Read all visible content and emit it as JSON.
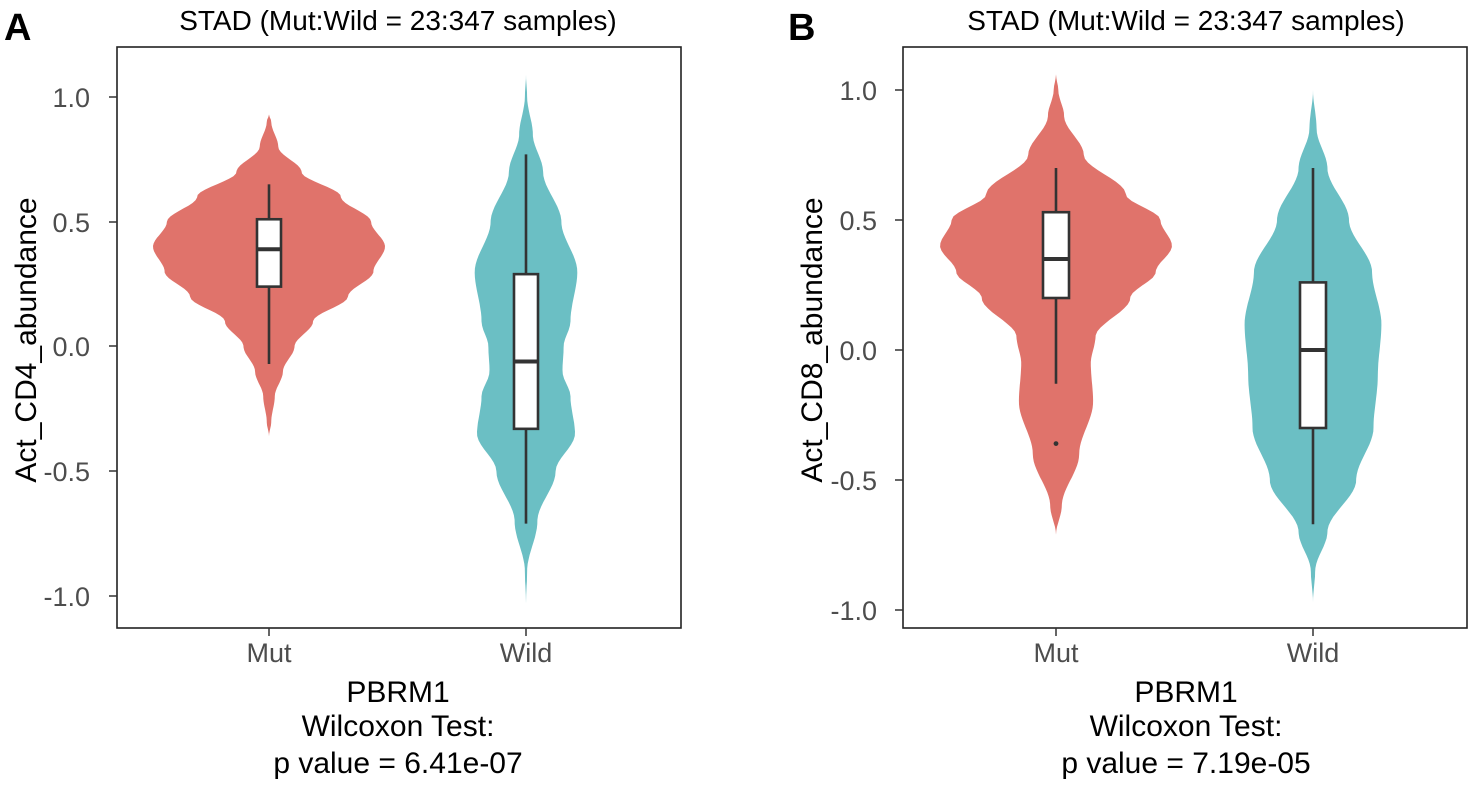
{
  "panels": [
    {
      "letter": "A",
      "title": "STAD (Mut:Wild = 23:347 samples)",
      "ylabel": "Act_CD4_abundance",
      "gene": "PBRM1",
      "test": "Wilcoxon Test:",
      "pvalue": "p value = 6.41e-07",
      "yticks": [
        "1.0",
        "0.5",
        "0.0",
        "-0.5",
        "-1.0"
      ],
      "xticks": [
        "Mut",
        "Wild"
      ]
    },
    {
      "letter": "B",
      "title": "STAD (Mut:Wild = 23:347 samples)",
      "ylabel": "Act_CD8_abundance",
      "gene": "PBRM1",
      "test": "Wilcoxon Test:",
      "pvalue": "p value = 7.19e-05",
      "yticks": [
        "1.0",
        "0.5",
        "0.0",
        "-0.5",
        "-1.0"
      ],
      "xticks": [
        "Mut",
        "Wild"
      ]
    }
  ],
  "colors": {
    "mut": "#e0736b",
    "wild": "#6bbfc4",
    "box_line": "#333333"
  },
  "chart_data": [
    {
      "type": "violin",
      "title": "STAD (Mut:Wild = 23:347 samples)",
      "xlabel": "PBRM1",
      "ylabel": "Act_CD4_abundance",
      "ylim": [
        -1.13,
        1.22
      ],
      "yticks": [
        1.0,
        0.5,
        0.0,
        -0.5,
        -1.0
      ],
      "categories": [
        "Mut",
        "Wild"
      ],
      "groups": [
        {
          "name": "Mut",
          "color": "#e0736b",
          "min": -0.36,
          "max": 0.93,
          "profile": [
            [
              -0.36,
              0.0
            ],
            [
              -0.3,
              0.02
            ],
            [
              -0.2,
              0.05
            ],
            [
              -0.1,
              0.12
            ],
            [
              0.0,
              0.22
            ],
            [
              0.1,
              0.38
            ],
            [
              0.2,
              0.68
            ],
            [
              0.3,
              0.9
            ],
            [
              0.4,
              1.0
            ],
            [
              0.5,
              0.88
            ],
            [
              0.6,
              0.62
            ],
            [
              0.7,
              0.28
            ],
            [
              0.8,
              0.08
            ],
            [
              0.9,
              0.02
            ],
            [
              0.93,
              0.0
            ]
          ],
          "box": {
            "whisker_low": -0.07,
            "q1": 0.24,
            "median": 0.39,
            "q3": 0.51,
            "whisker_high": 0.65
          },
          "outliers": []
        },
        {
          "name": "Wild",
          "color": "#6bbfc4",
          "min": -1.03,
          "max": 1.09,
          "profile": [
            [
              -1.03,
              0.0
            ],
            [
              -0.9,
              0.02
            ],
            [
              -0.7,
              0.2
            ],
            [
              -0.5,
              0.52
            ],
            [
              -0.35,
              0.86
            ],
            [
              -0.2,
              0.78
            ],
            [
              -0.1,
              0.64
            ],
            [
              0.0,
              0.66
            ],
            [
              0.1,
              0.78
            ],
            [
              0.3,
              0.9
            ],
            [
              0.5,
              0.62
            ],
            [
              0.7,
              0.3
            ],
            [
              0.85,
              0.12
            ],
            [
              1.0,
              0.02
            ],
            [
              1.09,
              0.0
            ]
          ],
          "box": {
            "whisker_low": -0.71,
            "q1": -0.33,
            "median": -0.06,
            "q3": 0.29,
            "whisker_high": 0.77
          },
          "outliers": []
        }
      ],
      "annotation": [
        "PBRM1",
        "Wilcoxon Test:",
        "p value = 6.41e-07"
      ]
    },
    {
      "type": "violin",
      "title": "STAD (Mut:Wild = 23:347 samples)",
      "xlabel": "PBRM1",
      "ylabel": "Act_CD8_abundance",
      "ylim": [
        -1.07,
        1.17
      ],
      "yticks": [
        1.0,
        0.5,
        0.0,
        -0.5,
        -1.0
      ],
      "categories": [
        "Mut",
        "Wild"
      ],
      "groups": [
        {
          "name": "Mut",
          "color": "#e0736b",
          "min": -0.71,
          "max": 1.06,
          "profile": [
            [
              -0.71,
              0.0
            ],
            [
              -0.6,
              0.05
            ],
            [
              -0.4,
              0.2
            ],
            [
              -0.2,
              0.32
            ],
            [
              -0.05,
              0.3
            ],
            [
              0.05,
              0.34
            ],
            [
              0.2,
              0.64
            ],
            [
              0.3,
              0.86
            ],
            [
              0.4,
              1.0
            ],
            [
              0.5,
              0.9
            ],
            [
              0.6,
              0.6
            ],
            [
              0.75,
              0.24
            ],
            [
              0.9,
              0.07
            ],
            [
              1.0,
              0.02
            ],
            [
              1.06,
              0.0
            ]
          ],
          "box": {
            "whisker_low": -0.13,
            "q1": 0.2,
            "median": 0.35,
            "q3": 0.53,
            "whisker_high": 0.7
          },
          "outliers": [
            -0.36
          ]
        },
        {
          "name": "Wild",
          "color": "#6bbfc4",
          "min": -0.97,
          "max": 1.0,
          "profile": [
            [
              -0.97,
              0.0
            ],
            [
              -0.85,
              0.03
            ],
            [
              -0.7,
              0.2
            ],
            [
              -0.5,
              0.6
            ],
            [
              -0.3,
              0.84
            ],
            [
              -0.1,
              0.9
            ],
            [
              0.1,
              0.95
            ],
            [
              0.3,
              0.82
            ],
            [
              0.5,
              0.5
            ],
            [
              0.7,
              0.2
            ],
            [
              0.85,
              0.05
            ],
            [
              1.0,
              0.0
            ]
          ],
          "box": {
            "whisker_low": -0.67,
            "q1": -0.3,
            "median": 0.0,
            "q3": 0.26,
            "whisker_high": 0.7
          },
          "outliers": []
        }
      ],
      "annotation": [
        "PBRM1",
        "Wilcoxon Test:",
        "p value = 7.19e-05"
      ]
    }
  ]
}
